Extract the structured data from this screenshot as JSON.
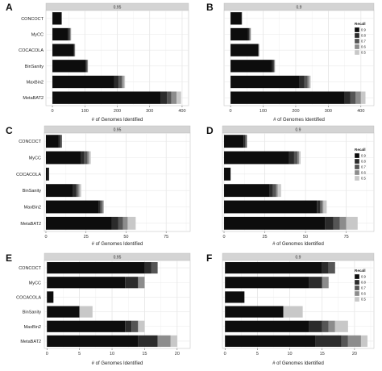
{
  "chart_data": [
    {
      "type": "bar",
      "panel": "A",
      "facet_label": "0.95",
      "orientation": "horizontal",
      "stacked": true,
      "categories": [
        "CONCOCT",
        "MyCC",
        "COCACOLA",
        "BinSanity",
        "MaxBin2",
        "MetaBAT2"
      ],
      "series": [
        {
          "name": "0.9",
          "color": "#0d0d0d",
          "values": [
            28,
            48,
            66,
            102,
            190,
            335
          ]
        },
        {
          "name": "0.8",
          "color": "#2b2b2b",
          "values": [
            1,
            4,
            2,
            4,
            14,
            18
          ]
        },
        {
          "name": "0.7",
          "color": "#555555",
          "values": [
            0,
            3,
            1,
            2,
            10,
            14
          ]
        },
        {
          "name": "0.6",
          "color": "#8c8c8c",
          "values": [
            0,
            2,
            1,
            1,
            6,
            16
          ]
        },
        {
          "name": "0.5",
          "color": "#c8c8c8",
          "values": [
            0,
            1,
            0,
            1,
            4,
            14
          ]
        }
      ],
      "xlabel": "# of Genomes Identified",
      "xlim": [
        -20,
        420
      ],
      "xticks": [
        0,
        100,
        200,
        300,
        400
      ],
      "grid": true
    },
    {
      "type": "bar",
      "panel": "B",
      "facet_label": "0.9",
      "orientation": "horizontal",
      "stacked": true,
      "categories": [
        "CONCOCT",
        "MyCC",
        "COCACOLA",
        "BinSanity",
        "MaxBin2",
        "MetaBAT2"
      ],
      "series": [
        {
          "name": "0.9",
          "color": "#0d0d0d",
          "values": [
            34,
            54,
            84,
            128,
            210,
            350
          ]
        },
        {
          "name": "0.8",
          "color": "#2b2b2b",
          "values": [
            1,
            3,
            2,
            4,
            16,
            18
          ]
        },
        {
          "name": "0.7",
          "color": "#555555",
          "values": [
            0,
            3,
            1,
            2,
            10,
            16
          ]
        },
        {
          "name": "0.6",
          "color": "#8c8c8c",
          "values": [
            0,
            2,
            1,
            2,
            6,
            16
          ]
        },
        {
          "name": "0.5",
          "color": "#c8c8c8",
          "values": [
            0,
            1,
            0,
            1,
            4,
            14
          ]
        }
      ],
      "xlabel": "# of Genomes Identified",
      "xlim": [
        -20,
        440
      ],
      "xticks": [
        0,
        100,
        200,
        300,
        400
      ],
      "grid": true,
      "legend": {
        "title": "Recall",
        "entries": [
          "0.9",
          "0.8",
          "0.7",
          "0.6",
          "0.5"
        ],
        "position": "right"
      }
    },
    {
      "type": "bar",
      "panel": "C",
      "facet_label": "0.95",
      "orientation": "horizontal",
      "stacked": true,
      "categories": [
        "CONCOCT",
        "MyCC",
        "COCACOLA",
        "BinSanity",
        "MaxBin2",
        "MetaBAT2"
      ],
      "series": [
        {
          "name": "0.9",
          "color": "#0d0d0d",
          "values": [
            8,
            22,
            1,
            17,
            33,
            41
          ]
        },
        {
          "name": "0.8",
          "color": "#2b2b2b",
          "values": [
            1,
            2,
            1,
            2,
            1,
            4
          ]
        },
        {
          "name": "0.7",
          "color": "#555555",
          "values": [
            1,
            2,
            0,
            1,
            1,
            3
          ]
        },
        {
          "name": "0.6",
          "color": "#8c8c8c",
          "values": [
            0,
            1,
            0,
            1,
            1,
            3
          ]
        },
        {
          "name": "0.5",
          "color": "#c8c8c8",
          "values": [
            0,
            1,
            0,
            1,
            0,
            5
          ]
        }
      ],
      "xlabel": "# of Genomes Identified",
      "xlim": [
        -1,
        90
      ],
      "xticks": [
        0,
        25,
        50,
        75
      ],
      "grid": true
    },
    {
      "type": "bar",
      "panel": "D",
      "facet_label": "0.9",
      "orientation": "horizontal",
      "stacked": true,
      "categories": [
        "CONCOCT",
        "MyCC",
        "COCACOLA",
        "BinSanity",
        "MaxBin2",
        "MetaBAT2"
      ],
      "series": [
        {
          "name": "0.9",
          "color": "#0d0d0d",
          "values": [
            12,
            40,
            4,
            28,
            57,
            62
          ]
        },
        {
          "name": "0.8",
          "color": "#2b2b2b",
          "values": [
            1,
            3,
            0,
            2,
            2,
            5
          ]
        },
        {
          "name": "0.7",
          "color": "#555555",
          "values": [
            1,
            2,
            0,
            2,
            1,
            4
          ]
        },
        {
          "name": "0.6",
          "color": "#8c8c8c",
          "values": [
            0,
            1,
            0,
            1,
            1,
            4
          ]
        },
        {
          "name": "0.5",
          "color": "#c8c8c8",
          "values": [
            0,
            1,
            0,
            2,
            2,
            7
          ]
        }
      ],
      "xlabel": "# of Genomes Identified",
      "xlim": [
        -1,
        92
      ],
      "xticks": [
        0,
        25,
        50,
        75
      ],
      "grid": true,
      "legend": {
        "title": "Recall",
        "entries": [
          "0.9",
          "0.8",
          "0.7",
          "0.6",
          "0.5"
        ],
        "position": "right"
      }
    },
    {
      "type": "bar",
      "panel": "E",
      "facet_label": "0.95",
      "orientation": "horizontal",
      "stacked": true,
      "categories": [
        "CONCOCT",
        "MyCC",
        "COCACOLA",
        "BinSanity",
        "MaxBin2",
        "MetaBAT2"
      ],
      "series": [
        {
          "name": "0.9",
          "color": "#0d0d0d",
          "values": [
            15,
            12,
            1,
            5,
            12,
            14
          ]
        },
        {
          "name": "0.8",
          "color": "#2b2b2b",
          "values": [
            1,
            2,
            0,
            0,
            1,
            3
          ]
        },
        {
          "name": "0.7",
          "color": "#555555",
          "values": [
            1,
            0,
            0,
            0,
            1,
            0
          ]
        },
        {
          "name": "0.6",
          "color": "#8c8c8c",
          "values": [
            0,
            1,
            0,
            0,
            0,
            2
          ]
        },
        {
          "name": "0.5",
          "color": "#c8c8c8",
          "values": [
            0,
            0,
            0,
            2,
            1,
            1
          ]
        }
      ],
      "xlabel": "# of Genomes Identified",
      "xlim": [
        -0.4,
        22
      ],
      "xticks": [
        0,
        5,
        10,
        15,
        20
      ],
      "grid": true
    },
    {
      "type": "bar",
      "panel": "F",
      "facet_label": "0.9",
      "orientation": "horizontal",
      "stacked": true,
      "categories": [
        "CONCOCT",
        "MyCC",
        "COCACOLA",
        "BinSanity",
        "MaxBin2",
        "MetaBAT2"
      ],
      "series": [
        {
          "name": "0.9",
          "color": "#0d0d0d",
          "values": [
            15,
            13,
            3,
            9,
            13,
            14
          ]
        },
        {
          "name": "0.8",
          "color": "#2b2b2b",
          "values": [
            1,
            2,
            0,
            0,
            2,
            4
          ]
        },
        {
          "name": "0.7",
          "color": "#555555",
          "values": [
            1,
            0,
            0,
            0,
            1,
            1
          ]
        },
        {
          "name": "0.6",
          "color": "#8c8c8c",
          "values": [
            0,
            1,
            0,
            0,
            1,
            2
          ]
        },
        {
          "name": "0.5",
          "color": "#c8c8c8",
          "values": [
            0,
            0,
            0,
            3,
            2,
            1
          ]
        }
      ],
      "xlabel": "# of Genomes Identified",
      "xlim": [
        -0.4,
        23
      ],
      "xticks": [
        0,
        5,
        10,
        15,
        20
      ],
      "grid": true,
      "legend": {
        "title": "Recall",
        "entries": [
          "0.9",
          "0.8",
          "0.7",
          "0.6",
          "0.5"
        ],
        "position": "right"
      }
    }
  ]
}
